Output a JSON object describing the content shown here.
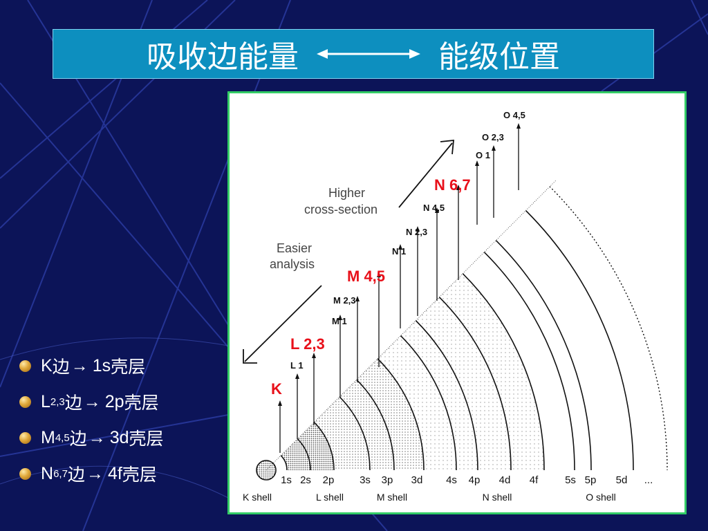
{
  "title": {
    "left": "吸收边能量",
    "right": "能级位置"
  },
  "bullets": [
    {
      "main": "K",
      "sub": "",
      "edge": "边",
      "arrow": "→",
      "shell": "1s",
      "suffix": "壳层"
    },
    {
      "main": "L",
      "sub": "2,3",
      "edge": "边",
      "arrow": "→",
      "shell": "2p",
      "suffix": "壳层"
    },
    {
      "main": "M",
      "sub": "4,5",
      "edge": "边",
      "arrow": "→",
      "shell": "3d",
      "suffix": "壳层"
    },
    {
      "main": "N",
      "sub": "6,7",
      "edge": "边",
      "arrow": "→",
      "shell": "4f",
      "suffix": "壳层"
    }
  ],
  "diagram": {
    "annotations": {
      "higher": [
        "Higher",
        "cross-section"
      ],
      "easier": [
        "Easier",
        "analysis"
      ]
    },
    "subshells": [
      "1s",
      "2s",
      "2p",
      "3s",
      "3p",
      "3d",
      "4s",
      "4p",
      "4d",
      "4f",
      "5s",
      "5p",
      "5d",
      "..."
    ],
    "shell_names": [
      "K shell",
      "L shell",
      "M shell",
      "N shell",
      "O shell"
    ],
    "edges": [
      {
        "label": "K",
        "highlight": true
      },
      {
        "label": "L 1",
        "highlight": false
      },
      {
        "label": "L 2,3",
        "highlight": true
      },
      {
        "label": "M 1",
        "highlight": false
      },
      {
        "label": "M 2,3",
        "highlight": false
      },
      {
        "label": "M 4,5",
        "highlight": true
      },
      {
        "label": "N 1",
        "highlight": false
      },
      {
        "label": "N 2,3",
        "highlight": false
      },
      {
        "label": "N 4,5",
        "highlight": false
      },
      {
        "label": "N 6,7",
        "highlight": true
      },
      {
        "label": "O 1",
        "highlight": false
      },
      {
        "label": "O 2,3",
        "highlight": false
      },
      {
        "label": "O 4,5",
        "highlight": false
      }
    ],
    "colors": {
      "highlight": "#e8101a",
      "normal": "#111111",
      "accent": "#33cc66",
      "banner": "#0d8fbf"
    }
  }
}
